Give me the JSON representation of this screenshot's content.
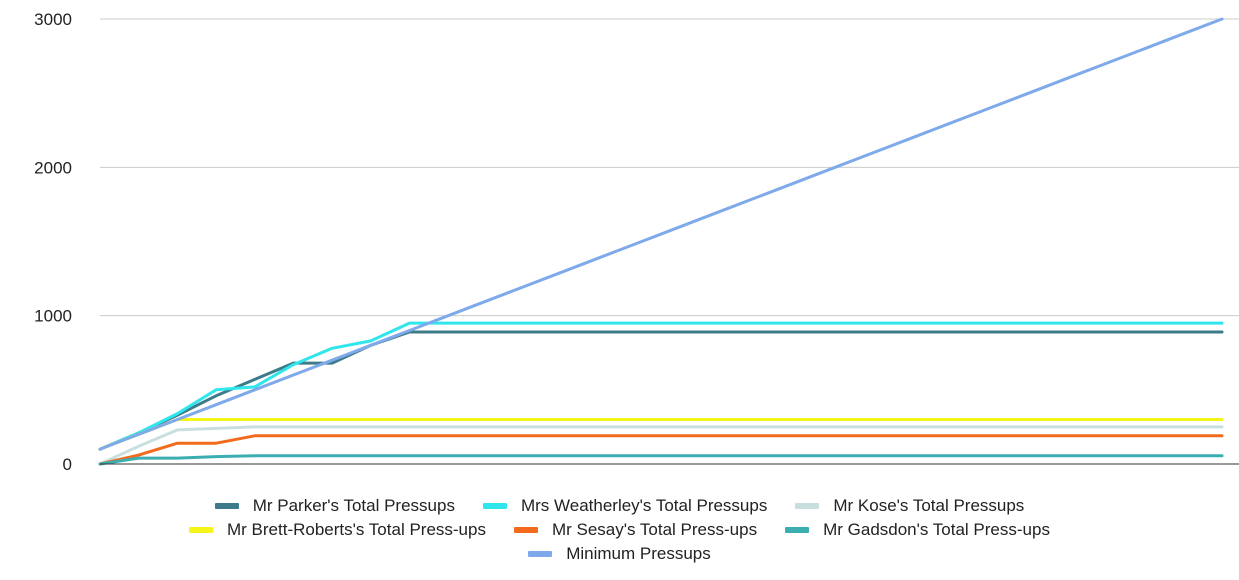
{
  "chart_data": {
    "type": "line",
    "title": "",
    "xlabel": "",
    "ylabel": "",
    "ylim": [
      0,
      3000
    ],
    "yticks": [
      0,
      1000,
      2000,
      3000
    ],
    "grid": true,
    "legend_position": "bottom",
    "x": [
      1,
      2,
      3,
      4,
      5,
      6,
      7,
      8,
      9,
      10,
      11,
      12,
      13,
      14,
      15,
      16,
      17,
      18,
      19,
      20,
      21,
      22,
      23,
      24,
      25,
      26,
      27,
      28,
      29,
      30
    ],
    "series": [
      {
        "name": "Mr Parker's Total Pressups",
        "color": "#3d7a8a",
        "values": [
          100,
          210,
          330,
          460,
          570,
          680,
          680,
          800,
          890,
          890,
          890,
          890,
          890,
          890,
          890,
          890,
          890,
          890,
          890,
          890,
          890,
          890,
          890,
          890,
          890,
          890,
          890,
          890,
          890,
          890
        ]
      },
      {
        "name": "Mrs Weatherley's Total Pressups",
        "color": "#2ee6ec",
        "values": [
          100,
          210,
          340,
          500,
          520,
          670,
          780,
          830,
          950,
          950,
          950,
          950,
          950,
          950,
          950,
          950,
          950,
          950,
          950,
          950,
          950,
          950,
          950,
          950,
          950,
          950,
          950,
          950,
          950,
          950
        ]
      },
      {
        "name": "Mr Kose's Total Pressups",
        "color": "#c9dfdf",
        "values": [
          0,
          120,
          230,
          240,
          250,
          250,
          250,
          250,
          250,
          250,
          250,
          250,
          250,
          250,
          250,
          250,
          250,
          250,
          250,
          250,
          250,
          250,
          250,
          250,
          250,
          250,
          250,
          250,
          250,
          250
        ]
      },
      {
        "name": "Mr Brett-Roberts's Total Press-ups",
        "color": "#f5f51a",
        "values": [
          100,
          200,
          300,
          300,
          300,
          300,
          300,
          300,
          300,
          300,
          300,
          300,
          300,
          300,
          300,
          300,
          300,
          300,
          300,
          300,
          300,
          300,
          300,
          300,
          300,
          300,
          300,
          300,
          300,
          300
        ]
      },
      {
        "name": "Mr Sesay's Total Press-ups",
        "color": "#f26b1d",
        "values": [
          0,
          60,
          140,
          140,
          190,
          190,
          190,
          190,
          190,
          190,
          190,
          190,
          190,
          190,
          190,
          190,
          190,
          190,
          190,
          190,
          190,
          190,
          190,
          190,
          190,
          190,
          190,
          190,
          190,
          190
        ]
      },
      {
        "name": "Mr Gadsdon's Total Press-ups",
        "color": "#3aaeb0",
        "values": [
          0,
          40,
          40,
          50,
          55,
          55,
          55,
          55,
          55,
          55,
          55,
          55,
          55,
          55,
          55,
          55,
          55,
          55,
          55,
          55,
          55,
          55,
          55,
          55,
          55,
          55,
          55,
          55,
          55,
          55
        ]
      },
      {
        "name": "Minimum Pressups",
        "color": "#7ea9ea",
        "values": [
          100,
          200,
          300,
          400,
          500,
          600,
          700,
          800,
          900,
          1000,
          1100,
          1200,
          1300,
          1400,
          1500,
          1600,
          1700,
          1800,
          1900,
          2000,
          2100,
          2200,
          2300,
          2400,
          2500,
          2600,
          2700,
          2800,
          2900,
          3000
        ]
      }
    ]
  }
}
